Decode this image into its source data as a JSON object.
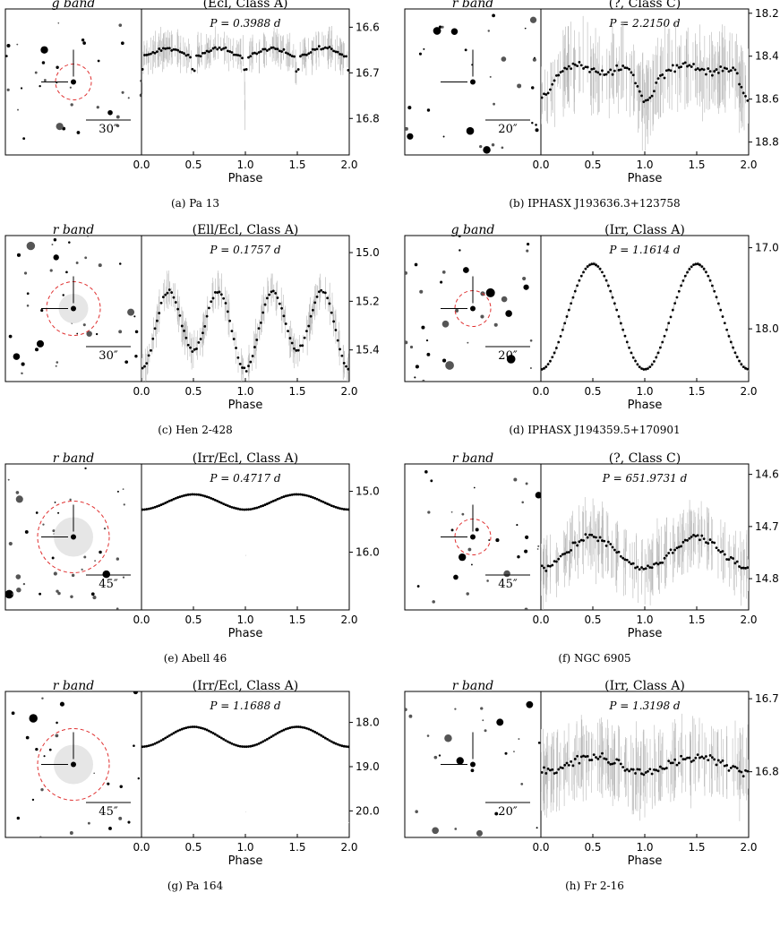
{
  "figure": {
    "x_axis_label": "Phase",
    "image_placeholder_desc": "grayscale sky cutouts"
  },
  "colors": {
    "circle": "#e03030",
    "axis": "#000000",
    "point": "#000000",
    "errorbar": "#b8b8b8"
  },
  "chart_data": [
    {
      "id": "a",
      "type": "scatter",
      "caption": "(a) Pa 13",
      "band_label": "g band",
      "title": "(Ecl, Class A)",
      "period": "P = 0.3988 d",
      "scale_label": "30″",
      "ylim": [
        16.88,
        16.56
      ],
      "yticks": [
        16.6,
        16.7,
        16.8
      ],
      "ytick_labels": [
        "16.6",
        "16.7",
        "16.8"
      ],
      "xlim": [
        0,
        2
      ],
      "xticks": [
        0.0,
        0.5,
        1.0,
        1.5,
        2.0
      ],
      "xtick_labels": [
        "0.0",
        "0.5",
        "1.0",
        "1.5",
        "2.0"
      ],
      "curve": {
        "kind": "eclipse",
        "base": 16.655,
        "depth": 0.17,
        "width": 0.012,
        "amp": 0.01,
        "noise": 0.025
      },
      "circle": {
        "show": true,
        "size": "small"
      }
    },
    {
      "id": "b",
      "type": "scatter",
      "caption": "(b) IPHASX J193636.3+123758",
      "band_label": "r band",
      "title": "(?, Class C)",
      "period": "P = 2.2150 d",
      "scale_label": "20″",
      "ylim": [
        18.86,
        18.18
      ],
      "yticks": [
        18.2,
        18.4,
        18.6,
        18.8
      ],
      "ytick_labels": [
        "18.2",
        "18.4",
        "18.6",
        "18.8"
      ],
      "xlim": [
        0,
        2
      ],
      "xticks": [
        0.0,
        0.5,
        1.0,
        1.5,
        2.0
      ],
      "xtick_labels": [
        "0.0",
        "0.5",
        "1.0",
        "1.5",
        "2.0"
      ],
      "curve": {
        "kind": "dip",
        "base": 18.46,
        "depth": 0.14,
        "width": 0.08,
        "amp": 0.02,
        "noise": 0.12
      },
      "circle": {
        "show": false,
        "size": "none"
      }
    },
    {
      "id": "c",
      "type": "scatter",
      "caption": "(c) Hen 2-428",
      "band_label": "r band",
      "title": "(Ell/Ecl, Class A)",
      "period": "P = 0.1757 d",
      "scale_label": "30″",
      "ylim": [
        15.53,
        14.93
      ],
      "yticks": [
        15.0,
        15.2,
        15.4
      ],
      "ytick_labels": [
        "15.0",
        "15.2",
        "15.4"
      ],
      "xlim": [
        0,
        2
      ],
      "xticks": [
        0.0,
        0.5,
        1.0,
        1.5,
        2.0
      ],
      "xtick_labels": [
        "0.0",
        "0.5",
        "1.0",
        "1.5",
        "2.0"
      ],
      "curve": {
        "kind": "ellipsoidal",
        "base": 15.3,
        "depth": 0.04,
        "width": 0.0,
        "amp": 0.14,
        "noise": 0.05
      },
      "circle": {
        "show": true,
        "size": "medium"
      }
    },
    {
      "id": "d",
      "type": "scatter",
      "caption": "(d) IPHASX J194359.5+170901",
      "band_label": "g band",
      "title": "(Irr, Class A)",
      "period": "P = 1.1614 d",
      "scale_label": "20″",
      "ylim": [
        18.65,
        16.85
      ],
      "yticks": [
        17.0,
        18.0
      ],
      "ytick_labels": [
        "17.0",
        "18.0"
      ],
      "xlim": [
        0,
        2
      ],
      "xticks": [
        0.0,
        0.5,
        1.0,
        1.5,
        2.0
      ],
      "xtick_labels": [
        "0.0",
        "0.5",
        "1.0",
        "1.5",
        "2.0"
      ],
      "curve": {
        "kind": "sine",
        "base": 17.85,
        "depth": 0.0,
        "width": 0.0,
        "amp": 0.65,
        "noise": 0.02
      },
      "circle": {
        "show": true,
        "size": "small"
      }
    },
    {
      "id": "e",
      "type": "scatter",
      "caption": "(e) Abell 46",
      "band_label": "r band",
      "title": "(Irr/Ecl, Class A)",
      "period": "P = 0.4717 d",
      "scale_label": "45″",
      "ylim": [
        16.95,
        14.55
      ],
      "yticks": [
        15.0,
        16.0
      ],
      "ytick_labels": [
        "15.0",
        "16.0"
      ],
      "xlim": [
        0,
        2
      ],
      "xticks": [
        0.0,
        0.5,
        1.0,
        1.5,
        2.0
      ],
      "xtick_labels": [
        "0.0",
        "0.5",
        "1.0",
        "1.5",
        "2.0"
      ],
      "curve": {
        "kind": "reflect-ecl",
        "base": 15.05,
        "depth": 1.7,
        "width": 0.008,
        "amp": 0.25,
        "noise": 0.01
      },
      "circle": {
        "show": true,
        "size": "large"
      }
    },
    {
      "id": "f",
      "type": "scatter",
      "caption": "(f) NGC 6905",
      "band_label": "r band",
      "title": "(?, Class C)",
      "period": "P = 651.9731 d",
      "scale_label": "45″",
      "ylim": [
        14.86,
        14.58
      ],
      "yticks": [
        14.6,
        14.7,
        14.8
      ],
      "ytick_labels": [
        "14.6",
        "14.7",
        "14.8"
      ],
      "xlim": [
        0,
        2
      ],
      "xticks": [
        0.0,
        0.5,
        1.0,
        1.5,
        2.0
      ],
      "xtick_labels": [
        "0.0",
        "0.5",
        "1.0",
        "1.5",
        "2.0"
      ],
      "curve": {
        "kind": "sine",
        "base": 14.75,
        "depth": 0.0,
        "width": 0.0,
        "amp": 0.03,
        "noise": 0.04
      },
      "circle": {
        "show": true,
        "size": "small"
      }
    },
    {
      "id": "g",
      "type": "scatter",
      "caption": "(g) Pa 164",
      "band_label": "r band",
      "title": "(Irr/Ecl, Class A)",
      "period": "P = 1.1688 d",
      "scale_label": "45″",
      "ylim": [
        20.6,
        17.3
      ],
      "yticks": [
        18.0,
        19.0,
        20.0
      ],
      "ytick_labels": [
        "18.0",
        "19.0",
        "20.0"
      ],
      "xlim": [
        0,
        2
      ],
      "xticks": [
        0.0,
        0.5,
        1.0,
        1.5,
        2.0
      ],
      "xtick_labels": [
        "0.0",
        "0.5",
        "1.0",
        "1.5",
        "2.0"
      ],
      "curve": {
        "kind": "reflect-ecl",
        "base": 18.1,
        "depth": 2.3,
        "width": 0.008,
        "amp": 0.45,
        "noise": 0.01
      },
      "circle": {
        "show": true,
        "size": "large"
      }
    },
    {
      "id": "h",
      "type": "scatter",
      "caption": "(h) Fr 2-16",
      "band_label": "r band",
      "title": "(Irr, Class A)",
      "period": "P = 1.3198 d",
      "scale_label": "20″",
      "ylim": [
        16.89,
        16.69
      ],
      "yticks": [
        16.7,
        16.8
      ],
      "ytick_labels": [
        "16.7",
        "16.8"
      ],
      "xlim": [
        0,
        2
      ],
      "xticks": [
        0.0,
        0.5,
        1.0,
        1.5,
        2.0
      ],
      "xtick_labels": [
        "0.0",
        "0.5",
        "1.0",
        "1.5",
        "2.0"
      ],
      "curve": {
        "kind": "sine",
        "base": 16.79,
        "depth": 0.0,
        "width": 0.0,
        "amp": 0.01,
        "noise": 0.035
      },
      "circle": {
        "show": false,
        "size": "none"
      }
    }
  ]
}
